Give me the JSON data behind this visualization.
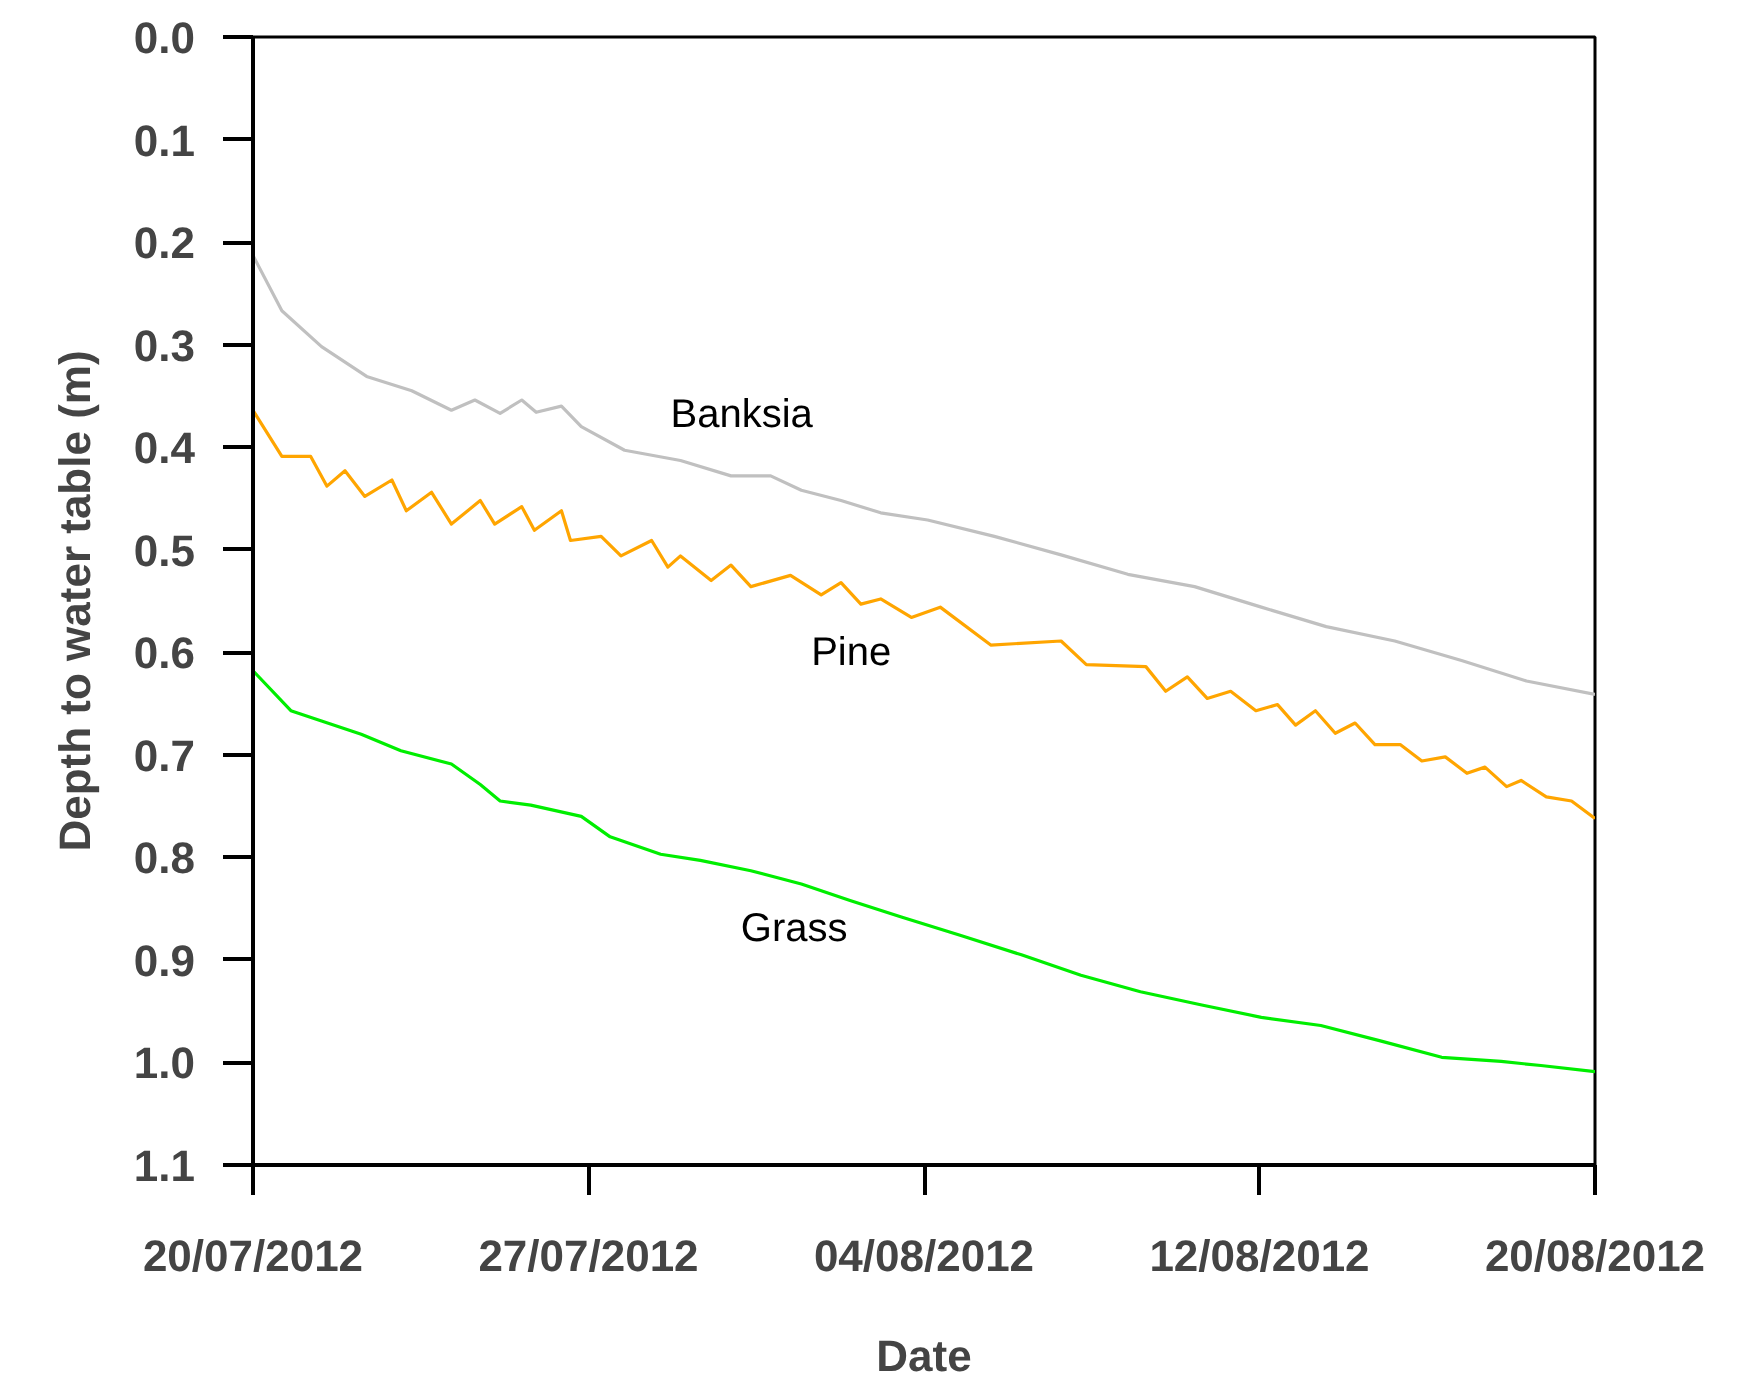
{
  "chart_data": {
    "type": "line",
    "xlabel": "Date",
    "ylabel": "Depth to water table (m)",
    "xlim": [
      "2012-07-20T00:00",
      "2012-08-20T00:00"
    ],
    "xticks": [
      {
        "value": "2012-07-20T00:00",
        "label": "20/07/2012"
      },
      {
        "value": "2012-07-27T18:00",
        "label": "27/07/2012"
      },
      {
        "value": "2012-08-04T12:00",
        "label": "04/08/2012"
      },
      {
        "value": "2012-08-12T06:00",
        "label": "12/08/2012"
      },
      {
        "value": "2012-08-20T00:00",
        "label": "20/08/2012"
      }
    ],
    "ylim": [
      1.1,
      0.0
    ],
    "yticks": [
      {
        "value": 0,
        "label": "0.0"
      },
      0.1,
      0.2,
      0.3,
      0.4,
      0.5,
      0.6,
      0.7,
      0.8,
      0.9,
      {
        "value": 1,
        "label": "1.0"
      },
      1.1
    ],
    "series": [
      {
        "name": "Banksia",
        "color": "#c0c0c0",
        "x": [
          "2012-07-20T00:00",
          "2012-07-20T16:00",
          "2012-07-21T14:00",
          "2012-07-22T15:00",
          "2012-07-23T16:00",
          "2012-07-24T14:00",
          "2012-07-25T03:00",
          "2012-07-25T17:00",
          "2012-07-26T05:00",
          "2012-07-26T13:00",
          "2012-07-27T03:00",
          "2012-07-27T14:00",
          "2012-07-28T14:00",
          "2012-07-29T21:00",
          "2012-07-31T01:00",
          "2012-07-31T23:00",
          "2012-08-01T16:00",
          "2012-08-02T14:00",
          "2012-08-03T12:00",
          "2012-08-04T14:00",
          "2012-08-06T03:00",
          "2012-08-07T16:00",
          "2012-08-09T05:00",
          "2012-08-10T18:00",
          "2012-08-12T07:00",
          "2012-08-13T19:00",
          "2012-08-15T09:00",
          "2012-08-16T22:00",
          "2012-08-18T10:00",
          "2012-08-20T00:00"
        ],
        "values": [
          0.213,
          0.267,
          0.302,
          0.331,
          0.345,
          0.364,
          0.354,
          0.367,
          0.354,
          0.366,
          0.36,
          0.38,
          0.403,
          0.413,
          0.428,
          0.428,
          0.442,
          0.452,
          0.464,
          0.471,
          0.487,
          0.505,
          0.524,
          0.536,
          0.556,
          0.575,
          0.589,
          0.608,
          0.628,
          0.641
        ]
      },
      {
        "name": "Pine",
        "color": "#ffa500",
        "x": [
          "2012-07-20T00:00",
          "2012-07-20T16:00",
          "2012-07-21T08:00",
          "2012-07-21T17:00",
          "2012-07-22T03:00",
          "2012-07-22T14:00",
          "2012-07-23T05:00",
          "2012-07-23T13:00",
          "2012-07-24T03:00",
          "2012-07-24T14:00",
          "2012-07-25T06:00",
          "2012-07-25T14:00",
          "2012-07-26T05:00",
          "2012-07-26T12:00",
          "2012-07-27T03:00",
          "2012-07-27T08:00",
          "2012-07-28T01:00",
          "2012-07-28T12:00",
          "2012-07-29T05:00",
          "2012-07-29T14:00",
          "2012-07-29T21:00",
          "2012-07-30T14:00",
          "2012-07-31T01:00",
          "2012-07-31T12:00",
          "2012-08-01T10:00",
          "2012-08-02T03:00",
          "2012-08-02T14:00",
          "2012-08-03T01:00",
          "2012-08-03T12:00",
          "2012-08-04T05:00",
          "2012-08-04T21:00",
          "2012-08-06T01:00",
          "2012-08-07T16:00",
          "2012-08-08T06:00",
          "2012-08-09T15:00",
          "2012-08-10T02:00",
          "2012-08-10T14:00",
          "2012-08-11T01:00",
          "2012-08-11T14:00",
          "2012-08-12T04:00",
          "2012-08-12T16:00",
          "2012-08-13T02:00",
          "2012-08-13T13:00",
          "2012-08-14T00:00",
          "2012-08-14T11:00",
          "2012-08-14T22:00",
          "2012-08-15T12:00",
          "2012-08-16T00:00",
          "2012-08-16T13:00",
          "2012-08-17T01:00",
          "2012-08-17T11:00",
          "2012-08-17T23:00",
          "2012-08-18T07:00",
          "2012-08-18T21:00",
          "2012-08-19T11:00",
          "2012-08-20T00:00"
        ],
        "values": [
          0.364,
          0.409,
          0.409,
          0.438,
          0.423,
          0.448,
          0.432,
          0.462,
          0.444,
          0.475,
          0.452,
          0.475,
          0.458,
          0.481,
          0.462,
          0.491,
          0.487,
          0.506,
          0.491,
          0.517,
          0.506,
          0.53,
          0.515,
          0.536,
          0.525,
          0.544,
          0.532,
          0.553,
          0.548,
          0.566,
          0.556,
          0.593,
          0.589,
          0.612,
          0.614,
          0.638,
          0.624,
          0.645,
          0.638,
          0.657,
          0.651,
          0.671,
          0.657,
          0.679,
          0.669,
          0.69,
          0.69,
          0.706,
          0.702,
          0.718,
          0.712,
          0.731,
          0.725,
          0.741,
          0.745,
          0.762
        ]
      },
      {
        "name": "Grass",
        "color": "#00ee00",
        "x": [
          "2012-07-20T00:00",
          "2012-07-20T21:00",
          "2012-07-21T14:00",
          "2012-07-22T12:00",
          "2012-07-23T10:00",
          "2012-07-24T14:00",
          "2012-07-25T06:00",
          "2012-07-25T17:00",
          "2012-07-26T10:00",
          "2012-07-27T14:00",
          "2012-07-28T06:00",
          "2012-07-29T10:00",
          "2012-07-30T08:00",
          "2012-07-31T12:00",
          "2012-08-01T16:00",
          "2012-08-02T19:00",
          "2012-08-03T23:00",
          "2012-08-05T08:00",
          "2012-08-06T18:00",
          "2012-08-08T03:00",
          "2012-08-09T12:00",
          "2012-08-10T22:00",
          "2012-08-12T07:00",
          "2012-08-13T16:00",
          "2012-08-15T01:00",
          "2012-08-16T11:00",
          "2012-08-17T20:00",
          "2012-08-18T18:00",
          "2012-08-20T00:00"
        ],
        "values": [
          0.618,
          0.657,
          0.667,
          0.68,
          0.696,
          0.709,
          0.729,
          0.745,
          0.749,
          0.76,
          0.78,
          0.797,
          0.803,
          0.813,
          0.826,
          0.842,
          0.858,
          0.876,
          0.895,
          0.915,
          0.931,
          0.944,
          0.956,
          0.964,
          0.979,
          0.995,
          0.999,
          1.003,
          1.009
        ]
      }
    ]
  }
}
